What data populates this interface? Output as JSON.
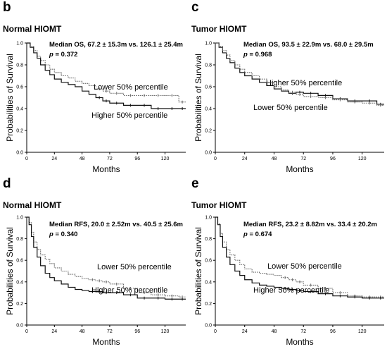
{
  "panels": [
    {
      "letter": "b",
      "title": "Normal HIOMT",
      "stat": "Median OS, 67.2 ± 15.3m vs. 126.1 ± 25.4m",
      "p_label": "p",
      "p_value": "= 0.372"
    },
    {
      "letter": "c",
      "title": "Tumor HIOMT",
      "stat": "Median OS, 93.5 ± 22.9m vs. 68.0 ± 29.5m",
      "p_label": "p",
      "p_value": "= 0.968"
    },
    {
      "letter": "d",
      "title": "Normal HIOMT",
      "stat": "Median RFS, 20.0 ± 2.52m vs. 40.5 ± 25.6m",
      "p_label": "p",
      "p_value": "= 0.340"
    },
    {
      "letter": "e",
      "title": "Tumor HIOMT",
      "stat": "Median RFS, 23.2 ± 8.82m vs. 33.4 ± 20.2m",
      "p_label": "p",
      "p_value": "= 0.674"
    }
  ],
  "chart_data": [
    {
      "type": "line",
      "title": "Normal HIOMT",
      "xlabel": "Months",
      "ylabel": "Probabilities of  Survival",
      "xlim": [
        0,
        138
      ],
      "ylim": [
        0,
        1.0
      ],
      "xticks": [
        0,
        24,
        48,
        72,
        96,
        120
      ],
      "yticks": [
        0.0,
        0.2,
        0.4,
        0.6,
        0.8,
        1.0
      ],
      "series": [
        {
          "name": "Lower 50% percentile",
          "style": "dotted",
          "x": [
            0,
            3,
            6,
            9,
            12,
            16,
            20,
            24,
            30,
            36,
            42,
            48,
            54,
            60,
            66,
            72,
            84,
            96,
            108,
            120,
            132,
            138
          ],
          "y": [
            1.0,
            0.97,
            0.93,
            0.88,
            0.84,
            0.8,
            0.76,
            0.73,
            0.7,
            0.68,
            0.65,
            0.63,
            0.61,
            0.58,
            0.56,
            0.54,
            0.52,
            0.52,
            0.52,
            0.52,
            0.46,
            0.46
          ]
        },
        {
          "name": "Higher 50% percentile",
          "style": "solid",
          "x": [
            0,
            3,
            6,
            9,
            12,
            16,
            20,
            24,
            30,
            36,
            42,
            48,
            54,
            60,
            66,
            72,
            84,
            96,
            108,
            120,
            132,
            138
          ],
          "y": [
            1.0,
            0.96,
            0.91,
            0.86,
            0.8,
            0.75,
            0.71,
            0.67,
            0.64,
            0.62,
            0.6,
            0.56,
            0.53,
            0.5,
            0.47,
            0.45,
            0.43,
            0.43,
            0.4,
            0.4,
            0.4,
            0.4
          ]
        }
      ]
    },
    {
      "type": "line",
      "title": "Tumor HIOMT",
      "xlabel": "Months",
      "ylabel": "Probabilities of  Survival",
      "xlim": [
        0,
        138
      ],
      "ylim": [
        0,
        1.0
      ],
      "xticks": [
        0,
        24,
        48,
        72,
        96,
        120
      ],
      "yticks": [
        0.0,
        0.2,
        0.4,
        0.6,
        0.8,
        1.0
      ],
      "series": [
        {
          "name": "Higher 50% percentile",
          "style": "solid",
          "x": [
            0,
            3,
            6,
            9,
            12,
            16,
            20,
            24,
            30,
            36,
            42,
            48,
            54,
            60,
            66,
            72,
            84,
            96,
            108,
            120,
            132,
            138
          ],
          "y": [
            1.0,
            0.96,
            0.91,
            0.86,
            0.82,
            0.77,
            0.73,
            0.7,
            0.67,
            0.64,
            0.61,
            0.58,
            0.56,
            0.54,
            0.55,
            0.54,
            0.52,
            0.49,
            0.47,
            0.47,
            0.44,
            0.44
          ]
        },
        {
          "name": "Lower 50% percentile",
          "style": "dotted",
          "x": [
            0,
            3,
            6,
            9,
            12,
            16,
            20,
            24,
            30,
            36,
            42,
            48,
            54,
            60,
            66,
            72,
            84,
            96,
            108,
            120,
            132,
            138
          ],
          "y": [
            1.0,
            0.97,
            0.93,
            0.89,
            0.84,
            0.8,
            0.76,
            0.73,
            0.7,
            0.67,
            0.64,
            0.6,
            0.57,
            0.55,
            0.53,
            0.51,
            0.5,
            0.48,
            0.46,
            0.45,
            0.43,
            0.43
          ]
        }
      ]
    },
    {
      "type": "line",
      "title": "Normal HIOMT",
      "xlabel": "Months",
      "ylabel": "Probabilities of  Survival",
      "xlim": [
        0,
        138
      ],
      "ylim": [
        0,
        1.0
      ],
      "xticks": [
        0,
        24,
        48,
        72,
        96,
        120
      ],
      "yticks": [
        0.0,
        0.2,
        0.4,
        0.6,
        0.8,
        1.0
      ],
      "series": [
        {
          "name": "Lower 50% percentile",
          "style": "dotted",
          "x": [
            0,
            2,
            4,
            6,
            9,
            12,
            16,
            20,
            24,
            30,
            36,
            42,
            48,
            54,
            60,
            66,
            72,
            84,
            96,
            108,
            120,
            132,
            138
          ],
          "y": [
            1.0,
            0.95,
            0.86,
            0.77,
            0.7,
            0.65,
            0.61,
            0.57,
            0.53,
            0.5,
            0.47,
            0.45,
            0.43,
            0.42,
            0.41,
            0.4,
            0.38,
            0.34,
            0.3,
            0.28,
            0.27,
            0.26,
            0.26
          ]
        },
        {
          "name": "Higher 50% percentile",
          "style": "solid",
          "x": [
            0,
            2,
            4,
            6,
            9,
            12,
            16,
            20,
            24,
            30,
            36,
            42,
            48,
            54,
            60,
            66,
            72,
            84,
            96,
            108,
            120,
            132,
            138
          ],
          "y": [
            1.0,
            0.93,
            0.82,
            0.72,
            0.63,
            0.55,
            0.48,
            0.44,
            0.41,
            0.38,
            0.35,
            0.33,
            0.32,
            0.31,
            0.31,
            0.3,
            0.3,
            0.28,
            0.25,
            0.25,
            0.24,
            0.24,
            0.24
          ]
        }
      ]
    },
    {
      "type": "line",
      "title": "Tumor HIOMT",
      "xlabel": "Months",
      "ylabel": "Probabilities of  Survival",
      "xlim": [
        0,
        138
      ],
      "ylim": [
        0,
        1.0
      ],
      "xticks": [
        0,
        24,
        48,
        72,
        96,
        120
      ],
      "yticks": [
        0.0,
        0.2,
        0.4,
        0.6,
        0.8,
        1.0
      ],
      "series": [
        {
          "name": "Lower 50% percentile",
          "style": "dotted",
          "x": [
            0,
            2,
            4,
            6,
            9,
            12,
            16,
            20,
            24,
            30,
            36,
            42,
            48,
            54,
            60,
            66,
            72,
            84,
            96,
            108,
            120,
            132,
            138
          ],
          "y": [
            1.0,
            0.94,
            0.85,
            0.77,
            0.7,
            0.65,
            0.6,
            0.56,
            0.52,
            0.49,
            0.48,
            0.47,
            0.46,
            0.44,
            0.42,
            0.4,
            0.37,
            0.34,
            0.3,
            0.27,
            0.26,
            0.26,
            0.26
          ]
        },
        {
          "name": "Higher 50% percentile",
          "style": "solid",
          "x": [
            0,
            2,
            4,
            6,
            9,
            12,
            16,
            20,
            24,
            30,
            36,
            42,
            48,
            54,
            60,
            66,
            72,
            84,
            96,
            108,
            120,
            132,
            138
          ],
          "y": [
            1.0,
            0.93,
            0.82,
            0.72,
            0.63,
            0.56,
            0.5,
            0.46,
            0.42,
            0.39,
            0.37,
            0.36,
            0.35,
            0.34,
            0.33,
            0.32,
            0.31,
            0.29,
            0.27,
            0.26,
            0.25,
            0.25,
            0.25
          ]
        }
      ]
    }
  ]
}
